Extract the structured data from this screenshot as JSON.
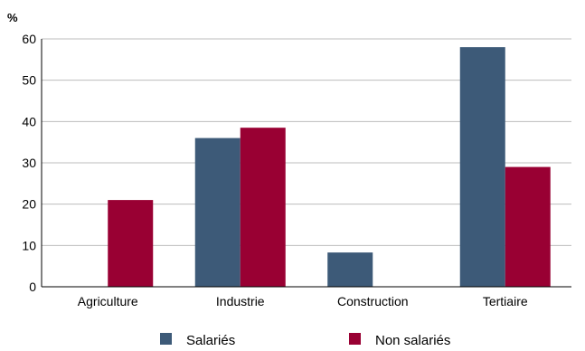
{
  "chart_data": {
    "type": "bar",
    "ylabel": "%",
    "ylim": [
      0,
      60
    ],
    "yticks": [
      0,
      10,
      20,
      30,
      40,
      50,
      60
    ],
    "grid": true,
    "legend_position": "bottom",
    "categories": [
      "Agriculture",
      "Industrie",
      "Construction",
      "Tertiaire"
    ],
    "series": [
      {
        "name": "Salariés",
        "color": "#3d5a78",
        "values": [
          0,
          36,
          8.3,
          58
        ]
      },
      {
        "name": "Non salariés",
        "color": "#990033",
        "values": [
          21,
          38.5,
          0,
          29
        ]
      }
    ]
  }
}
